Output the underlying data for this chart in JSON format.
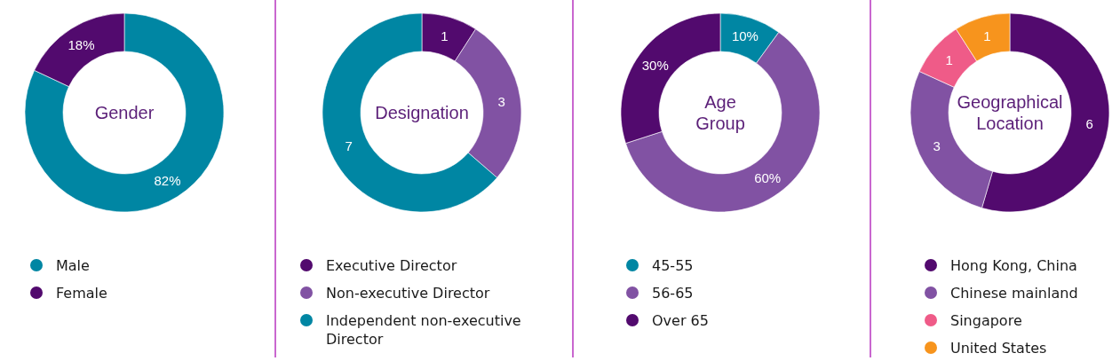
{
  "chart_data": [
    {
      "type": "donut",
      "title": "Gender",
      "categories": [
        "Male",
        "Female"
      ],
      "values": [
        82,
        18
      ],
      "colors": [
        "#0086a3",
        "#520a6e"
      ],
      "value_labels": [
        "82%",
        "18%"
      ],
      "legend": "bottom"
    },
    {
      "type": "donut",
      "title": "Designation",
      "categories": [
        "Executive Director",
        "Non-executive Director",
        "Independent non-executive Director"
      ],
      "values": [
        1,
        3,
        7
      ],
      "colors": [
        "#520a6e",
        "#8152a3",
        "#0086a3"
      ],
      "data_labels": true,
      "legend": "bottom"
    },
    {
      "type": "donut",
      "title": "Age\nGroup",
      "categories": [
        "45-55",
        "56-65",
        "Over 65"
      ],
      "values": [
        10,
        60,
        30
      ],
      "colors": [
        "#0086a3",
        "#8152a3",
        "#520a6e"
      ],
      "value_labels": [
        "10%",
        "60%",
        "30%"
      ],
      "legend": "bottom"
    },
    {
      "type": "donut",
      "title": "Geographical\nLocation",
      "categories": [
        "Hong Kong, China",
        "Chinese mainland",
        "Singapore",
        "United States"
      ],
      "values": [
        6,
        3,
        1,
        1
      ],
      "colors": [
        "#520a6e",
        "#8152a3",
        "#ef5b88",
        "#f7941d"
      ],
      "data_labels": true,
      "legend": "bottom"
    }
  ]
}
